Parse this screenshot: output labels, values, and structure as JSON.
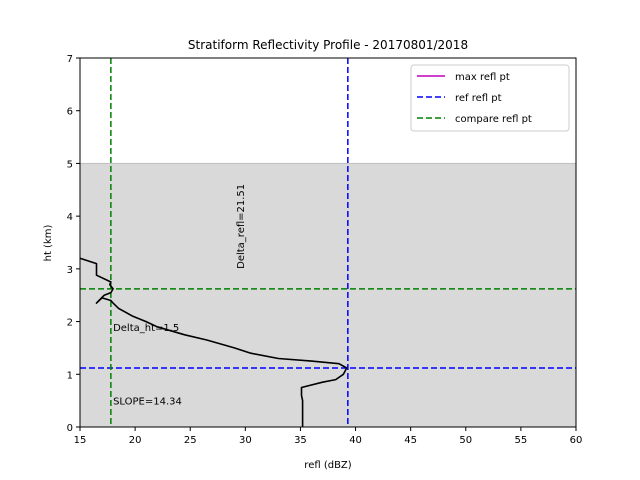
{
  "chart_data": {
    "type": "line",
    "title": "Stratiform Reflectivity Profile - 20170801/2018",
    "xlabel": "refl (dBZ)",
    "ylabel": "ht (km)",
    "xlim": [
      15,
      60
    ],
    "ylim": [
      0,
      7
    ],
    "xticks": [
      15,
      20,
      25,
      30,
      35,
      40,
      45,
      50,
      55,
      60
    ],
    "yticks": [
      0,
      1,
      2,
      3,
      4,
      5,
      6,
      7
    ],
    "shaded_band": {
      "y_from": 0,
      "y_to": 5,
      "color": "#d9d9d9"
    },
    "profile": {
      "name": "reflectivity profile",
      "color": "#000000",
      "points": [
        [
          35.2,
          0.0
        ],
        [
          35.2,
          0.5
        ],
        [
          35.1,
          0.6
        ],
        [
          35.1,
          0.75
        ],
        [
          37.0,
          0.85
        ],
        [
          38.2,
          0.9
        ],
        [
          38.9,
          1.0
        ],
        [
          39.2,
          1.12
        ],
        [
          38.5,
          1.2
        ],
        [
          36.0,
          1.25
        ],
        [
          33.0,
          1.3
        ],
        [
          30.5,
          1.4
        ],
        [
          29.0,
          1.5
        ],
        [
          26.5,
          1.65
        ],
        [
          24.5,
          1.75
        ],
        [
          22.0,
          1.9
        ],
        [
          21.0,
          2.0
        ],
        [
          19.8,
          2.1
        ],
        [
          18.5,
          2.25
        ],
        [
          18.0,
          2.35
        ],
        [
          17.8,
          2.4
        ],
        [
          17.0,
          2.45
        ],
        [
          16.5,
          2.35
        ],
        [
          17.2,
          2.5
        ],
        [
          17.8,
          2.55
        ],
        [
          18.0,
          2.62
        ],
        [
          17.7,
          2.7
        ],
        [
          17.8,
          2.75
        ],
        [
          16.5,
          2.88
        ],
        [
          16.5,
          3.1
        ],
        [
          15.0,
          3.2
        ]
      ]
    },
    "series": [
      {
        "name": "max refl pt",
        "color": "#bf00bf",
        "style": "solid"
      },
      {
        "name": "ref refl pt",
        "color": "#0000ff",
        "style": "dashed"
      },
      {
        "name": "compare refl pt",
        "color": "#008000",
        "style": "dashed"
      }
    ],
    "reference_lines": [
      {
        "series": "ref refl pt",
        "orientation": "vertical",
        "value": 39.3
      },
      {
        "series": "ref refl pt",
        "orientation": "horizontal",
        "value": 1.12
      },
      {
        "series": "compare refl pt",
        "orientation": "vertical",
        "value": 17.8
      },
      {
        "series": "compare refl pt",
        "orientation": "horizontal",
        "value": 2.62
      }
    ],
    "annotations": [
      {
        "text": "Delta_refl=21.51",
        "x": 28.8,
        "y": 3.0,
        "rotation": -90
      },
      {
        "text": "Delta_ht=1.5",
        "x": 18.0,
        "y": 1.9,
        "rotation": 0
      },
      {
        "text": "SLOPE=14.34",
        "x": 18.0,
        "y": 0.5,
        "rotation": 0
      }
    ],
    "legend_position": "top-right",
    "grid": false
  }
}
